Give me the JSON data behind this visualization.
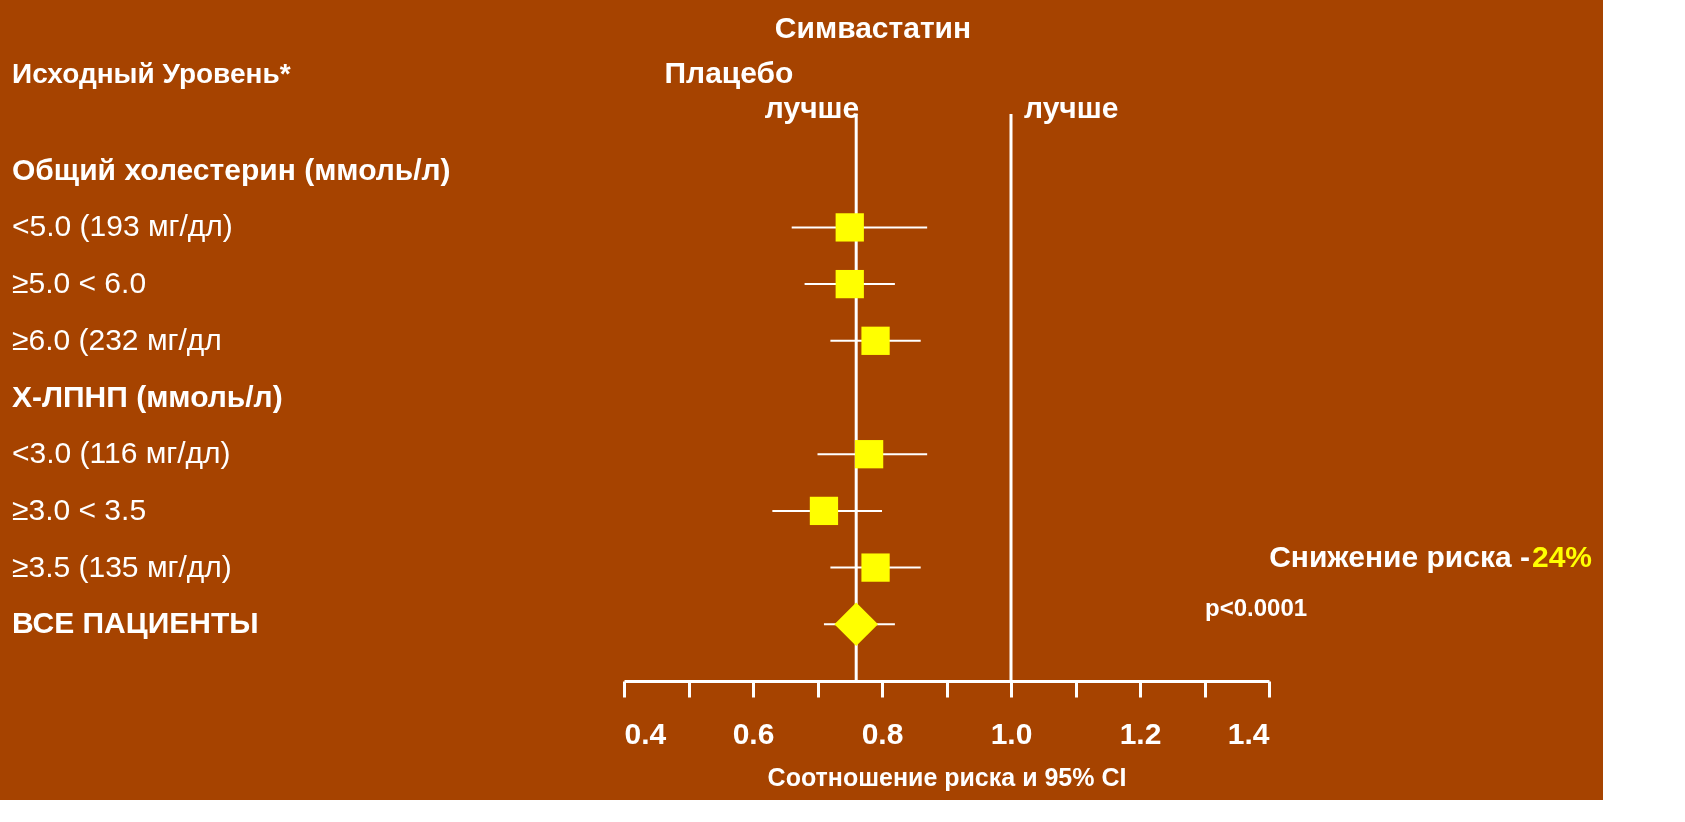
{
  "chart_data": {
    "type": "scatter",
    "orientation": "horizontal",
    "xlabel": "Соотношение риска и  95% CI",
    "categories": [
      "Общий холестерин (ммоль/л)",
      "<5.0 (193 мг/дл)",
      "≥5.0 < 6.0",
      "≥6.0 (232 мг/дл",
      "Х-ЛПНП (ммоль/л)",
      "<3.0 (116 мг/дл)",
      "≥3.0 < 3.5",
      "≥3.5 (135 мг/дл)",
      "ВСЕ ПАЦИЕНТЫ"
    ],
    "series": [
      {
        "marker": "square",
        "color": "#ffff00",
        "values": [
          null,
          0.75,
          0.75,
          0.79,
          null,
          0.78,
          0.71,
          0.79,
          null
        ],
        "errors": [
          null,
          [
            0.66,
            0.87
          ],
          [
            0.68,
            0.82
          ],
          [
            0.72,
            0.86
          ],
          null,
          [
            0.7,
            0.87
          ],
          [
            0.63,
            0.8
          ],
          [
            0.72,
            0.86
          ],
          null
        ]
      },
      {
        "marker": "diamond",
        "color": "#ffff00",
        "values": [
          null,
          null,
          null,
          null,
          null,
          null,
          null,
          null,
          0.76
        ],
        "errors": [
          null,
          null,
          null,
          null,
          null,
          null,
          null,
          null,
          [
            0.71,
            0.82
          ]
        ]
      }
    ],
    "xlim": [
      0.4,
      1.4
    ],
    "xticks": [
      0.4,
      {
        "value": 0.5,
        "label": null
      },
      0.6,
      {
        "value": 0.7,
        "label": null
      },
      0.8,
      {
        "value": 0.9,
        "label": null
      },
      {
        "value": 1.0,
        "label": "1.0"
      },
      {
        "value": 1.1,
        "label": null
      },
      1.2,
      {
        "value": 1.3,
        "label": null
      },
      1.4
    ],
    "ref_lines": [
      {
        "axis": "x",
        "value": 1.0,
        "color": "#ffffff"
      },
      {
        "axis": "x",
        "value": 0.76,
        "color": "#ffffff"
      }
    ],
    "annotations": [
      "Исходный Уровень*",
      "Симвастатин",
      "Плацебо",
      "лучше",
      "лучше",
      "Снижение риска -",
      "24%",
      "p<0.0001"
    ],
    "grid": false
  }
}
